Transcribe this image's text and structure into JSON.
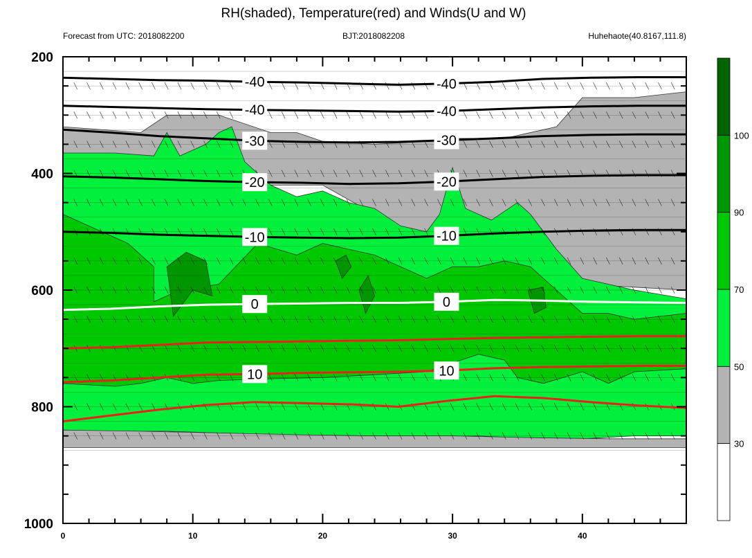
{
  "title": "RH(shaded), Temperature(red) and Winds(U and W)",
  "subtitle_left": "Forecast from UTC: 2018082200",
  "subtitle_center": "BJT:2018082208",
  "subtitle_right": "Huhehaote(40.8167,111.8)",
  "chart_data": {
    "type": "contour",
    "x_range": [
      0,
      48
    ],
    "x_ticks": [
      0,
      10,
      20,
      30,
      40
    ],
    "y_range": [
      200,
      1000
    ],
    "y_ticks": [
      200,
      400,
      600,
      800,
      1000
    ],
    "y_reversed": true,
    "rh_levels": [
      30,
      50,
      70,
      90,
      100
    ],
    "rh_colors": [
      "#ffffff",
      "#b3b3b3",
      "#00f03c",
      "#00c800",
      "#009600",
      "#006400"
    ],
    "colorbar_labels": [
      "30",
      "50",
      "70",
      "90",
      "100"
    ],
    "temperature_contours": [
      {
        "label": "-40",
        "color": "#000000",
        "p": [
          236,
          238,
          240,
          241,
          243,
          244,
          246,
          248,
          246,
          243,
          238,
          236,
          235,
          235
        ]
      },
      {
        "label": "-40",
        "color": "#000000",
        "p": [
          284,
          286,
          288,
          290,
          291,
          292,
          293,
          294,
          293,
          290,
          287,
          285,
          284,
          284
        ]
      },
      {
        "label": "-30",
        "color": "#000000",
        "p": [
          325,
          330,
          336,
          340,
          344,
          346,
          347,
          346,
          343,
          340,
          336,
          334,
          333,
          333
        ]
      },
      {
        "label": "-20",
        "color": "#000000",
        "p": [
          405,
          407,
          410,
          413,
          415,
          416,
          418,
          417,
          414,
          410,
          406,
          404,
          403,
          403
        ]
      },
      {
        "label": "-10",
        "color": "#000000",
        "p": [
          500,
          502,
          505,
          507,
          509,
          510,
          511,
          510,
          507,
          503,
          500,
          498,
          497,
          497
        ]
      },
      {
        "label": "0",
        "color": "#ffffff",
        "p": [
          634,
          632,
          628,
          625,
          624,
          623,
          622,
          622,
          620,
          617,
          618,
          620,
          621,
          622
        ]
      },
      {
        "label": "10",
        "color": "#e8211c",
        "p": [
          758,
          755,
          750,
          745,
          744,
          742,
          741,
          740,
          738,
          734,
          732,
          731,
          730,
          730
        ]
      },
      {
        "label": "",
        "color": "#e8211c",
        "p": [
          825,
          815,
          805,
          797,
          792,
          794,
          796,
          800,
          790,
          782,
          785,
          792,
          798,
          802
        ]
      },
      {
        "label": "",
        "color": "#e8211c",
        "p": [
          700,
          698,
          694,
          690,
          689,
          688,
          687,
          686,
          684,
          682,
          681,
          680,
          679,
          679
        ]
      }
    ],
    "rh_field_note": "Relative humidity shaded: gray 30-50 above 300hPa and near surface (~850hPa), green 50-90 between ~380 and ~850hPa, dark green >90 patches near 550-650hPa at x=8-12, 21-23, 36-37."
  }
}
